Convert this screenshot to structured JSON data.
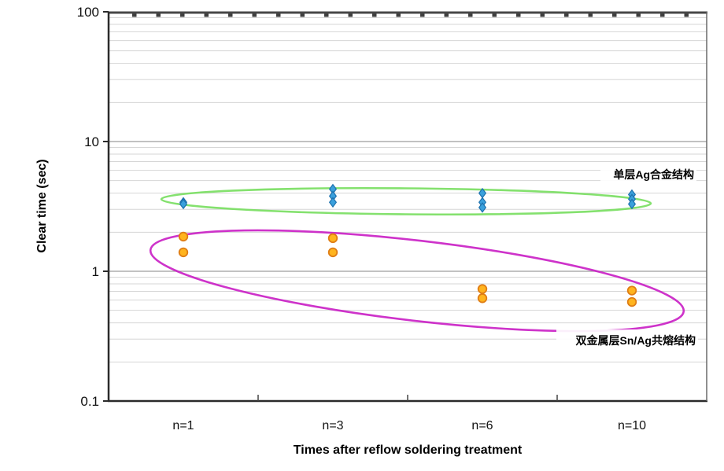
{
  "chart_data": {
    "type": "scatter",
    "x_categories": [
      "n=1",
      "n=3",
      "n=6",
      "n=10"
    ],
    "xlabel": "Times after reflow soldering treatment",
    "ylabel": "Clear time (sec)",
    "y_axis": {
      "scale": "log",
      "min": 0.1,
      "max": 100,
      "tick_labels": [
        "100",
        "10",
        "1",
        "0.1"
      ],
      "minor_gridlines": true
    },
    "legend_position": "none",
    "series": [
      {
        "name": "单层Ag合金结构",
        "marker": "diamond",
        "fill": "#3AA0DC",
        "edge": "#1D71AD",
        "data": [
          {
            "category": "n=1",
            "values": [
              3.4,
              3.3
            ]
          },
          {
            "category": "n=3",
            "values": [
              4.3,
              3.8,
              3.4
            ]
          },
          {
            "category": "n=6",
            "values": [
              4.0,
              3.4,
              3.1
            ]
          },
          {
            "category": "n=10",
            "values": [
              3.9,
              3.6,
              3.3
            ]
          }
        ]
      },
      {
        "name": "双金属层Sn/Ag共熔结构",
        "marker": "circle",
        "fill": "#FFB41E",
        "edge": "#DF7D15",
        "data": [
          {
            "category": "n=1",
            "values": [
              1.85,
              1.4
            ]
          },
          {
            "category": "n=3",
            "values": [
              1.8,
              1.4
            ]
          },
          {
            "category": "n=6",
            "values": [
              0.73,
              0.62
            ]
          },
          {
            "category": "n=10",
            "values": [
              0.71,
              0.58
            ]
          }
        ]
      }
    ],
    "annotations": [
      {
        "text": "单层Ag合金结构",
        "ellipse_color": "#77DE5E"
      },
      {
        "text": "双金属层Sn/Ag共熔结构",
        "ellipse_color": "#C91DC4"
      }
    ]
  }
}
